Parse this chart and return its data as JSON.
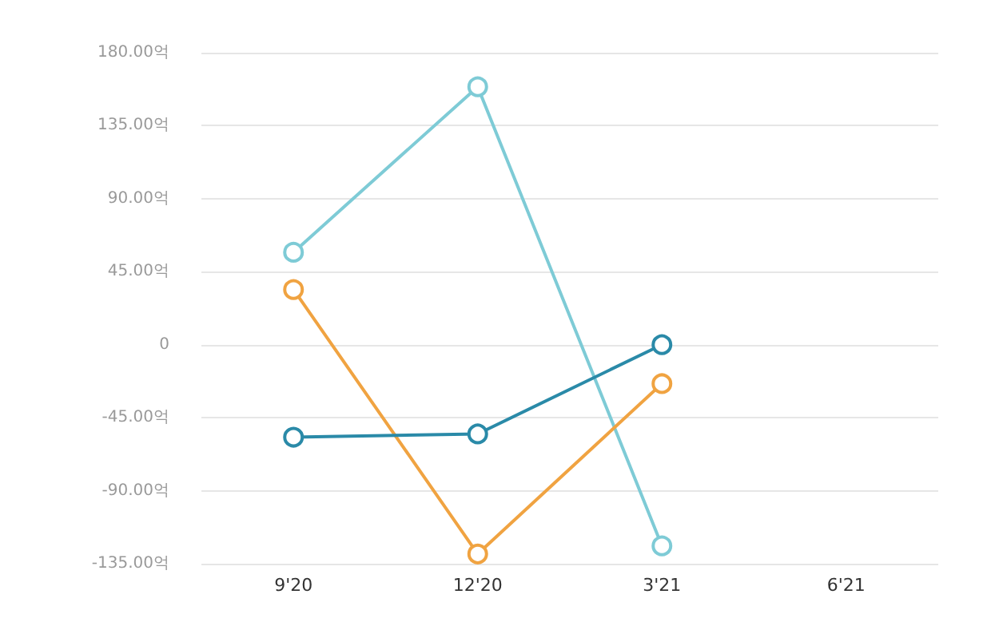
{
  "chart_data": {
    "type": "line",
    "categories": [
      "9'20",
      "12'20",
      "3'21",
      "6'21"
    ],
    "series": [
      {
        "color": "#7ecbd6",
        "values": [
          57,
          159,
          -124,
          null
        ]
      },
      {
        "color": "#f0a341",
        "values": [
          34,
          -129,
          -24,
          null
        ]
      },
      {
        "color": "#2a8aa8",
        "values": [
          -57,
          -55,
          0,
          null
        ]
      }
    ],
    "ylim": [
      -135,
      180
    ],
    "yticks": [
      {
        "value": -135,
        "label": "-135.00억"
      },
      {
        "value": -90,
        "label": "-90.00억"
      },
      {
        "value": -45,
        "label": "-45.00억"
      },
      0,
      {
        "value": 45,
        "label": "45.00억"
      },
      {
        "value": 90,
        "label": "90.00억"
      },
      {
        "value": 135,
        "label": "135.00억"
      },
      {
        "value": 180,
        "label": "180.00억"
      }
    ],
    "grid": "y",
    "marker": "circle",
    "line_style": "solid"
  }
}
